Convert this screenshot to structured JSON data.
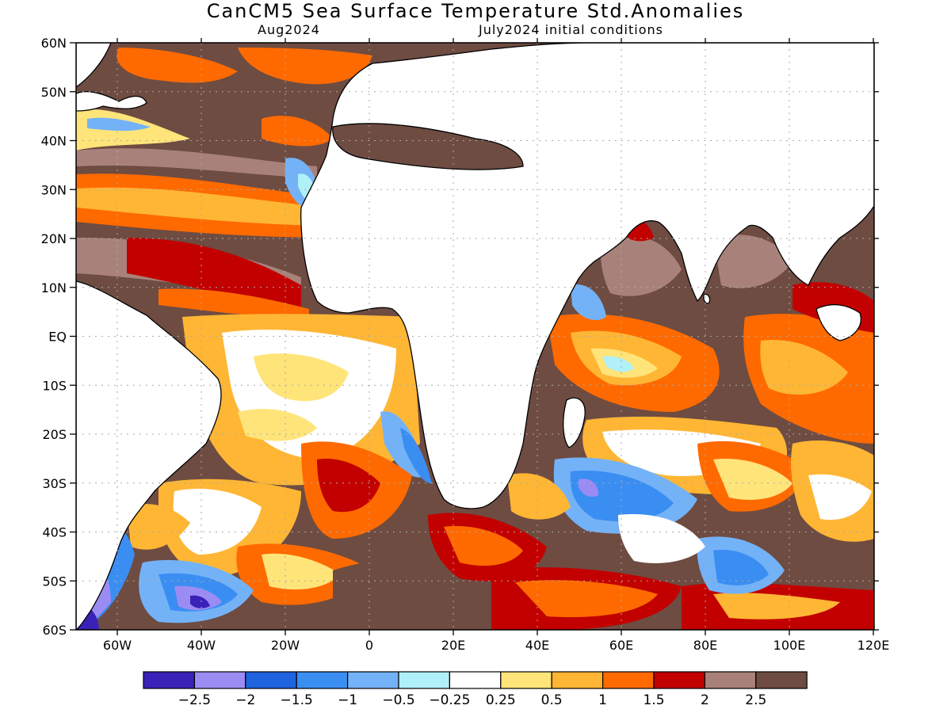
{
  "title": "CanCM5 Sea Surface Temperature Std.Anomalies",
  "subtitle_left": "Aug2024",
  "subtitle_right": "July2024 initial conditions",
  "lat_labels": [
    "60N",
    "50N",
    "40N",
    "30N",
    "20N",
    "10N",
    "EQ",
    "10S",
    "20S",
    "30S",
    "40S",
    "50S",
    "60S"
  ],
  "lon_labels": [
    "60W",
    "40W",
    "20W",
    "0",
    "20E",
    "40E",
    "60E",
    "80E",
    "100E",
    "120E"
  ],
  "colorbar": {
    "colors": [
      "#3a22b8",
      "#9b8cf4",
      "#1f63de",
      "#3a8ef2",
      "#74b2f8",
      "#b0f0f8",
      "#ffffff",
      "#ffe47a",
      "#ffb634",
      "#ff6a00",
      "#c20000",
      "#a8827a",
      "#6e4c42"
    ],
    "labels": [
      "−2.5",
      "−2",
      "−1.5",
      "−1",
      "−0.5",
      "−0.25",
      "0.25",
      "0.5",
      "1",
      "1.5",
      "2",
      "2.5"
    ]
  },
  "palette": {
    "land": "#ffffff",
    "deep_warm": "#6e4c42",
    "warm_grey": "#a8827a",
    "red": "#c20000",
    "orange": "#ff6a00",
    "light_orange": "#ffb634",
    "yellow": "#ffe47a",
    "neutral": "#ffffff",
    "light_cyan": "#b0f0f8",
    "light_blue": "#74b2f8",
    "blue": "#3a8ef2",
    "dark_blue": "#1f63de",
    "lavender": "#9b8cf4",
    "purple": "#3a22b8"
  }
}
